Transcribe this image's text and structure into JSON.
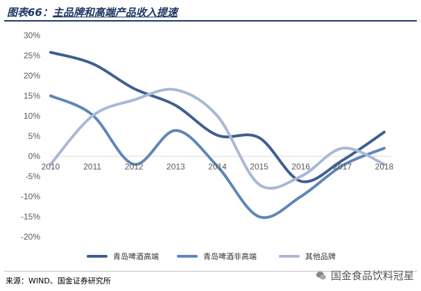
{
  "header": {
    "prefix": "图表66：",
    "title": "主品牌和高端产品收入提速"
  },
  "chart_data": {
    "type": "line",
    "title": "",
    "xlabel": "",
    "ylabel": "",
    "x": [
      "2010",
      "2011",
      "2012",
      "2013",
      "2014",
      "2015",
      "2016",
      "2017",
      "2018"
    ],
    "y_ticks": [
      "30%",
      "25%",
      "20%",
      "15%",
      "10%",
      "5%",
      "0%",
      "-5%",
      "-10%",
      "-15%",
      "-20%"
    ],
    "ylim": [
      -20,
      30
    ],
    "smooth": true,
    "grid": false,
    "legend_position": "bottom",
    "series": [
      {
        "name": "青岛啤酒高端",
        "color": "#3d5f8f",
        "values": [
          25.8,
          23.0,
          16.8,
          12.6,
          5.2,
          4.6,
          -6.2,
          -1.0,
          6.0
        ]
      },
      {
        "name": "青岛啤酒非高端",
        "color": "#5f86b8",
        "values": [
          15.0,
          10.3,
          -2.0,
          6.4,
          -2.5,
          -15.0,
          -10.0,
          -2.3,
          2.0
        ]
      },
      {
        "name": "其他品牌",
        "color": "#a8b9d6",
        "values": [
          -2.0,
          10.0,
          14.0,
          16.5,
          10.0,
          -7.0,
          -5.0,
          2.0,
          -2.0
        ]
      }
    ]
  },
  "source": "来源：WIND、国金证券研究所",
  "watermark": "国金食品饮料冠星"
}
